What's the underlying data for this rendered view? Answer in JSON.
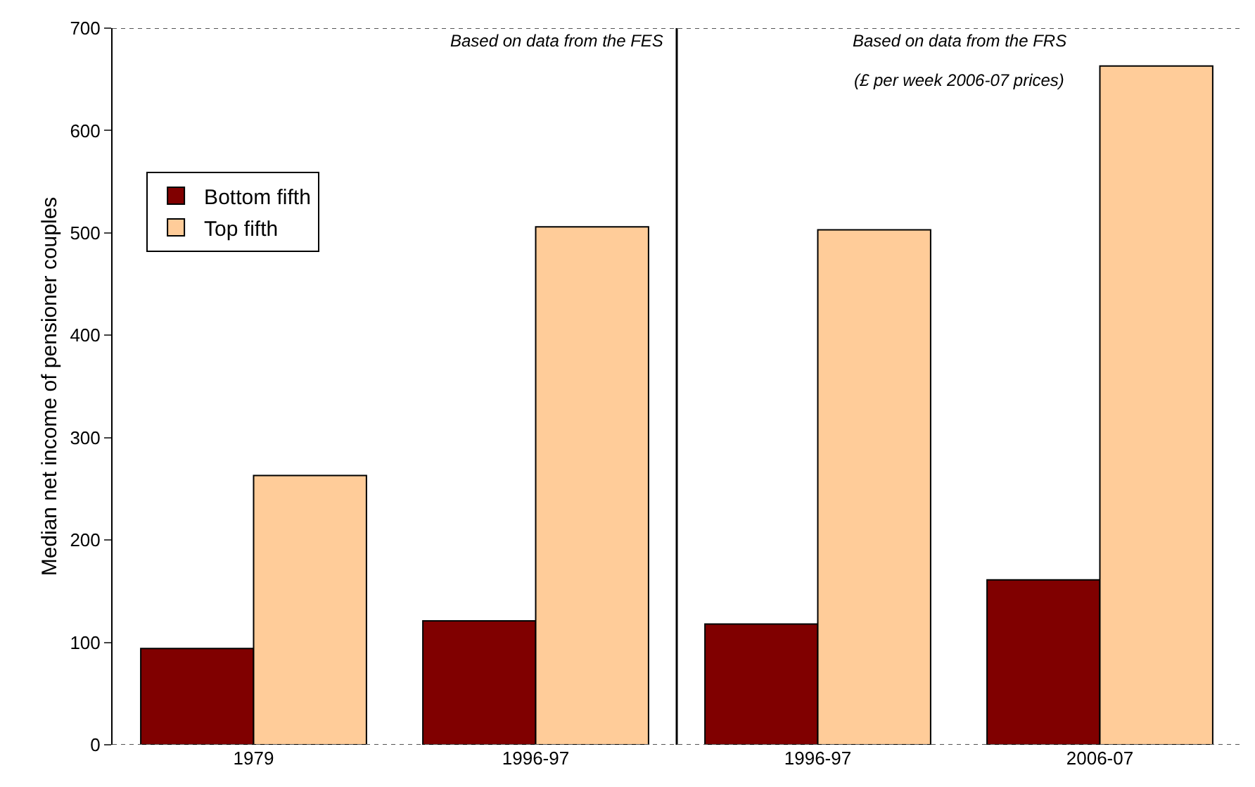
{
  "chart_data": {
    "type": "bar",
    "ylabel": "Median net income of pensioner couples",
    "categories": [
      "1979",
      "1996-97",
      "1996-97",
      "2006-07"
    ],
    "series": [
      {
        "name": "Bottom fifth",
        "color": "#800000",
        "values": [
          94,
          121,
          118,
          161
        ]
      },
      {
        "name": "Top fifth",
        "color": "#ffcc99",
        "values": [
          263,
          506,
          503,
          663
        ]
      }
    ],
    "ylim": [
      0,
      700
    ],
    "yticks": [
      0,
      100,
      200,
      300,
      400,
      500,
      600,
      700
    ],
    "annotations": [
      "Based on data from the FES",
      "Based on data from the FRS",
      "(£ per week 2006-07 prices)"
    ],
    "legend": "top left"
  }
}
